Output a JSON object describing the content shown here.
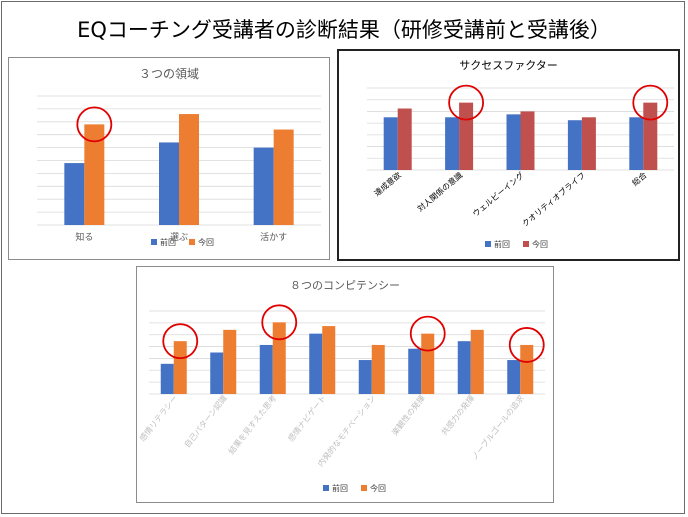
{
  "page": {
    "title": "EQコーチング受講者の診断結果（研修受講前と受講後）"
  },
  "chart_data": [
    {
      "type": "bar",
      "title": "３つの領域",
      "categories": [
        "知る",
        "選ぶ",
        "活かす"
      ],
      "series": [
        {
          "name": "前回",
          "color": "#4472c4",
          "values": [
            104,
            112,
            110
          ]
        },
        {
          "name": "今回",
          "color": "#ed7d31",
          "values": [
            119,
            123,
            117
          ]
        }
      ],
      "ylim": [
        80,
        130
      ],
      "gridlines": 10,
      "highlighted_categories": [
        0
      ],
      "legend_position": "bottom",
      "tick_label_color": "#595959",
      "rotated_labels": false
    },
    {
      "type": "bar",
      "title": "サクセスファクター",
      "categories": [
        "達成意欲",
        "対人関係の意識",
        "ウェルビーイング",
        "クオリティオブライフ",
        "総合"
      ],
      "series": [
        {
          "name": "前回",
          "color": "#4472c4",
          "values": [
            108,
            108,
            109,
            107,
            108
          ]
        },
        {
          "name": "今回",
          "color": "#c0504d",
          "values": [
            111,
            113,
            110,
            108,
            113
          ]
        }
      ],
      "ylim": [
        90,
        118
      ],
      "gridlines": 7,
      "highlighted_categories": [
        1,
        4
      ],
      "legend_position": "bottom",
      "tick_label_color": "#000000",
      "rotated_labels": true
    },
    {
      "type": "bar",
      "title": "８つのコンピテンシー",
      "categories": [
        "感情リテラシー",
        "自己パターン認識",
        "結果を見すえた思考",
        "感情ナビゲート",
        "内発的なモチベーション",
        "楽観性の発揮",
        "共感力の発揮",
        "ノーブルゴールの追求"
      ],
      "series": [
        {
          "name": "前回",
          "color": "#4472c4",
          "values": [
            102,
            105,
            107,
            110,
            103,
            106,
            108,
            103
          ]
        },
        {
          "name": "今回",
          "color": "#ed7d31",
          "values": [
            108,
            111,
            113,
            112,
            107,
            110,
            111,
            107
          ]
        }
      ],
      "ylim": [
        94,
        116
      ],
      "gridlines": 7,
      "highlighted_categories": [
        0,
        2,
        5,
        7
      ],
      "legend_position": "bottom",
      "tick_label_color": "#bfbfbf",
      "rotated_labels": true
    }
  ]
}
